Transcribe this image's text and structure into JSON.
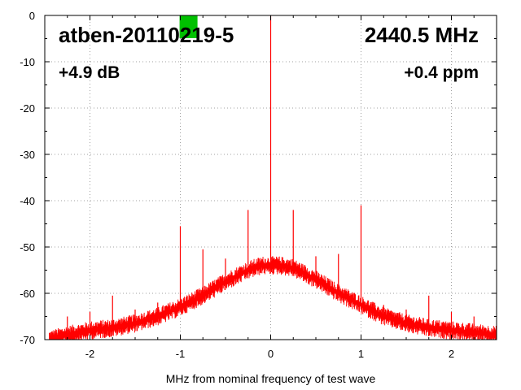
{
  "chart_data": {
    "type": "line",
    "xlabel": "MHz from nominal frequency of test wave",
    "ylabel": "",
    "xlim": [
      -2.5,
      2.5
    ],
    "ylim": [
      -70,
      0
    ],
    "x_ticks": [
      -2,
      -1,
      0,
      1,
      2
    ],
    "y_ticks": [
      0,
      -10,
      -20,
      -30,
      -40,
      -50,
      -60,
      -70
    ],
    "grid": true,
    "annotations": {
      "device": "atben-20110219-5",
      "frequency": "2440.5 MHz",
      "gain": "+4.9 dB",
      "offset": "+0.4 ppm"
    },
    "marker_color": "#00c000",
    "marker_x": -0.9,
    "series": [
      {
        "color": "#ff0000",
        "noise_floor": {
          "x": [
            -2.45,
            -2.25,
            -2.0,
            -1.75,
            -1.5,
            -1.25,
            -1.0,
            -0.75,
            -0.5,
            -0.25,
            -0.1,
            0.0,
            0.1,
            0.25,
            0.5,
            0.75,
            1.0,
            1.25,
            1.5,
            1.75,
            2.0,
            2.25,
            2.5
          ],
          "y": [
            -70,
            -69,
            -68,
            -67.5,
            -66.5,
            -65,
            -63,
            -60.5,
            -57.5,
            -55,
            -54,
            -54,
            -54,
            -54.5,
            -57,
            -60,
            -62.5,
            -65,
            -66.5,
            -67.5,
            -68,
            -68.5,
            -69
          ]
        },
        "spurs": [
          {
            "x": 0.0,
            "y": 0
          },
          {
            "x": -2.25,
            "y": -65
          },
          {
            "x": -2.0,
            "y": -64
          },
          {
            "x": -1.75,
            "y": -60.5
          },
          {
            "x": -1.5,
            "y": -63.5
          },
          {
            "x": -1.25,
            "y": -62
          },
          {
            "x": -1.0,
            "y": -45.5
          },
          {
            "x": -0.75,
            "y": -50.5
          },
          {
            "x": -0.5,
            "y": -52.5
          },
          {
            "x": -0.25,
            "y": -42
          },
          {
            "x": 0.25,
            "y": -42
          },
          {
            "x": 0.5,
            "y": -52
          },
          {
            "x": 0.75,
            "y": -51.5
          },
          {
            "x": 1.0,
            "y": -41
          },
          {
            "x": 1.25,
            "y": -62.5
          },
          {
            "x": 1.5,
            "y": -63.5
          },
          {
            "x": 1.75,
            "y": -60.5
          },
          {
            "x": 2.0,
            "y": -64
          },
          {
            "x": 2.25,
            "y": -65
          }
        ]
      }
    ]
  }
}
